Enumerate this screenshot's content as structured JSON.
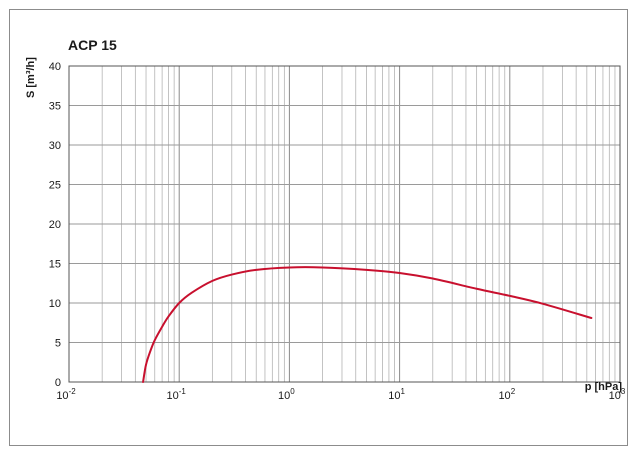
{
  "chart_data": {
    "type": "line",
    "title": "ACP 15",
    "xlabel": "p [hPa]",
    "ylabel": "S [m³/h]",
    "x_scale": "log",
    "xlim": [
      0.01,
      1000
    ],
    "ylim": [
      0,
      40
    ],
    "grid": true,
    "x_ticks": [
      {
        "base": "10",
        "exp": "-2"
      },
      {
        "base": "10",
        "exp": "-1"
      },
      {
        "base": "10",
        "exp": "0"
      },
      {
        "base": "10",
        "exp": "1"
      },
      {
        "base": "10",
        "exp": "2"
      },
      {
        "base": "10",
        "exp": "3"
      }
    ],
    "y_ticks": [
      "0",
      "5",
      "10",
      "15",
      "20",
      "25",
      "30",
      "35",
      "40"
    ],
    "series": [
      {
        "color": "#c8102e",
        "x": [
          0.047,
          0.05,
          0.055,
          0.06,
          0.07,
          0.08,
          0.1,
          0.13,
          0.2,
          0.3,
          0.5,
          1,
          2,
          5,
          10,
          20,
          50,
          100,
          200,
          550
        ],
        "y": [
          0,
          2.2,
          4.0,
          5.3,
          7.0,
          8.3,
          10.0,
          11.3,
          12.8,
          13.6,
          14.2,
          14.5,
          14.5,
          14.2,
          13.8,
          13.1,
          11.8,
          10.9,
          9.9,
          8.1
        ]
      }
    ]
  }
}
